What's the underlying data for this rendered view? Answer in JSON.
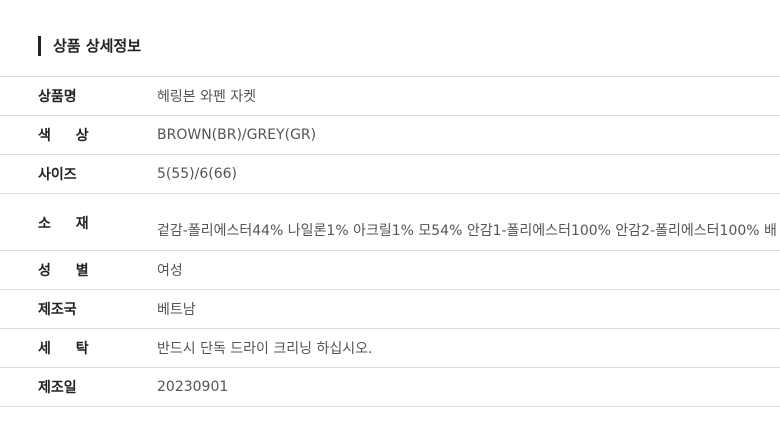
{
  "header": {
    "title": "상품 상세정보"
  },
  "table": {
    "rows": [
      [
        "상품명",
        "헤링본 와펜 자켓"
      ],
      [
        "색 상",
        "BROWN(BR)/GREY(GR)"
      ],
      [
        "사이즈",
        "5(55)/6(66)"
      ],
      [
        "소 재",
        "겉감-폴리에스터44% 나일론1% 아크릴1% 모54% 안감1-폴리에스터100% 안감2-폴리에스터100% 배"
      ],
      [
        "성 별",
        "여성"
      ],
      [
        "제조국",
        "베트남"
      ],
      [
        "세 탁",
        "반드시 단독 드라이 크리닝 하십시오."
      ],
      [
        "제조일",
        "20230901"
      ]
    ]
  }
}
